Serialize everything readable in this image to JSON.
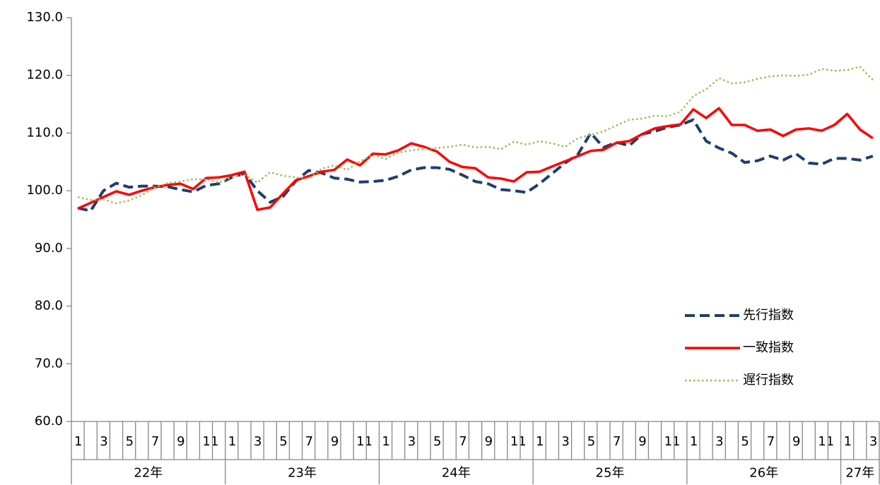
{
  "chart_data": {
    "type": "line",
    "categories": [
      "1",
      null,
      "3",
      null,
      "5",
      null,
      "7",
      null,
      "9",
      null,
      "11",
      null,
      "1",
      null,
      "3",
      null,
      "5",
      null,
      "7",
      null,
      "9",
      null,
      "11",
      null,
      "1",
      null,
      "3",
      null,
      "5",
      null,
      "7",
      null,
      "9",
      null,
      "11",
      null,
      "1",
      null,
      "3",
      null,
      "5",
      null,
      "7",
      null,
      "9",
      null,
      "11",
      null,
      "1",
      null,
      "3",
      null,
      "5",
      null,
      "7",
      null,
      "9",
      null,
      "11",
      null,
      "1",
      null,
      "3"
    ],
    "years": [
      "22年",
      "23年",
      "24年",
      "25年",
      "26年",
      "27年"
    ],
    "ylim": [
      60,
      130
    ],
    "yticks": [
      {
        "value": 60,
        "label": "60.0"
      },
      {
        "value": 70,
        "label": "70.0"
      },
      {
        "value": 80,
        "label": "80.0"
      },
      {
        "value": 90,
        "label": "90.0"
      },
      {
        "value": 100,
        "label": "100.0"
      },
      {
        "value": 110,
        "label": "110.0"
      },
      {
        "value": 120,
        "label": "120.0"
      },
      {
        "value": 130,
        "label": "130.0"
      }
    ],
    "grid": false,
    "legend": "lower right",
    "series": [
      {
        "name": "先行指数",
        "color": "#1f3d6e",
        "dash": "dashed",
        "values": [
          97.0,
          96.5,
          100.0,
          101.3,
          100.6,
          100.8,
          100.8,
          100.7,
          100.2,
          99.8,
          100.9,
          101.2,
          102.3,
          103.0,
          100.0,
          98.0,
          99.0,
          101.7,
          103.5,
          103.1,
          102.2,
          102.0,
          101.5,
          101.6,
          101.8,
          102.5,
          103.6,
          104.0,
          104.0,
          103.7,
          102.7,
          101.6,
          101.2,
          100.2,
          100.0,
          99.7,
          101.2,
          103.0,
          104.8,
          106.3,
          110.0,
          107.5,
          108.4,
          107.8,
          109.8,
          110.3,
          111.0,
          111.4,
          112.3,
          108.6,
          107.4,
          106.5,
          104.9,
          105.2,
          106.0,
          105.3,
          106.4,
          104.8,
          104.6,
          105.6,
          105.6,
          105.3,
          106.0
        ]
      },
      {
        "name": "一致指数",
        "color": "#ff0000",
        "dash": "solid",
        "values": [
          96.9,
          97.9,
          98.9,
          99.9,
          99.3,
          100.0,
          100.6,
          101.0,
          101.2,
          100.3,
          102.2,
          102.3,
          102.7,
          103.3,
          96.7,
          97.1,
          99.5,
          101.8,
          102.5,
          103.3,
          103.6,
          105.4,
          104.4,
          106.4,
          106.3,
          107.0,
          108.2,
          107.6,
          106.8,
          105.0,
          104.1,
          103.9,
          102.3,
          102.1,
          101.6,
          103.2,
          103.3,
          104.2,
          105.1,
          106.0,
          106.9,
          107.1,
          108.3,
          108.6,
          109.8,
          110.8,
          111.2,
          111.5,
          114.1,
          112.6,
          114.3,
          111.4,
          111.4,
          110.4,
          110.6,
          109.5,
          110.6,
          110.8,
          110.4,
          111.4,
          113.3,
          110.6,
          109.1
        ]
      },
      {
        "name": "遅行指数",
        "color": "#9bbb59",
        "dash": "dotted",
        "values": [
          98.9,
          98.4,
          98.5,
          97.8,
          98.3,
          99.2,
          100.6,
          101.3,
          101.6,
          102.0,
          102.0,
          101.4,
          102.3,
          102.8,
          101.4,
          103.2,
          102.6,
          102.3,
          102.1,
          103.8,
          104.4,
          103.6,
          105.1,
          106.2,
          105.5,
          106.6,
          107.0,
          107.2,
          107.4,
          107.6,
          108.0,
          107.5,
          107.6,
          107.2,
          108.5,
          108.0,
          108.6,
          108.2,
          107.6,
          109.1,
          109.7,
          110.3,
          111.3,
          112.3,
          112.5,
          113.0,
          112.9,
          113.7,
          116.4,
          117.6,
          119.5,
          118.6,
          118.8,
          119.4,
          119.8,
          120.0,
          119.9,
          120.1,
          121.1,
          120.8,
          120.9,
          121.5,
          119.2
        ]
      }
    ]
  }
}
